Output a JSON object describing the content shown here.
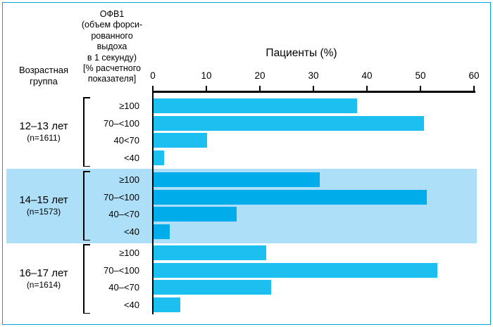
{
  "figure": {
    "border_color": "#00A1D6",
    "background": "#ffffff"
  },
  "headers": {
    "age_group": "Возрастная\nгруппа",
    "fev1": "ОФВ1\n(объем форси-\nрованного\nвыдоха\nв 1 секунду)\n[% расчетного\nпоказателя]"
  },
  "chart_data": {
    "type": "bar",
    "orientation": "horizontal",
    "title": "Пациенты (%)",
    "xlabel": "Пациенты (%)",
    "x_axis": {
      "min": 0,
      "max": 60,
      "ticks": [
        0,
        10,
        20,
        30,
        40,
        50,
        60
      ]
    },
    "grid": false,
    "legend": false,
    "groups": [
      {
        "label": "12–13 лет",
        "n_label": "(n=1611)",
        "highlighted": false,
        "bars": [
          {
            "category": "≥100",
            "value": 38
          },
          {
            "category": "70–<100",
            "value": 50.5
          },
          {
            "category": "40<70",
            "value": 10
          },
          {
            "category": "<40",
            "value": 2
          }
        ]
      },
      {
        "label": "14–15 лет",
        "n_label": "(n=1573)",
        "highlighted": true,
        "bars": [
          {
            "category": "≥100",
            "value": 31
          },
          {
            "category": "70–<100",
            "value": 51
          },
          {
            "category": "40–<70",
            "value": 15.5
          },
          {
            "category": "<40",
            "value": 3
          }
        ]
      },
      {
        "label": "16–17 лет",
        "n_label": "(n=1614)",
        "highlighted": false,
        "bars": [
          {
            "category": "≥100",
            "value": 21
          },
          {
            "category": "70–<100",
            "value": 53
          },
          {
            "category": "40–<70",
            "value": 22
          },
          {
            "category": "<40",
            "value": 5
          }
        ]
      }
    ],
    "colors": {
      "bar": "#1CC0F0",
      "bar_highlight": "#00ACEA",
      "highlight_band": "#ADDFF8",
      "axis": "#000000"
    }
  }
}
